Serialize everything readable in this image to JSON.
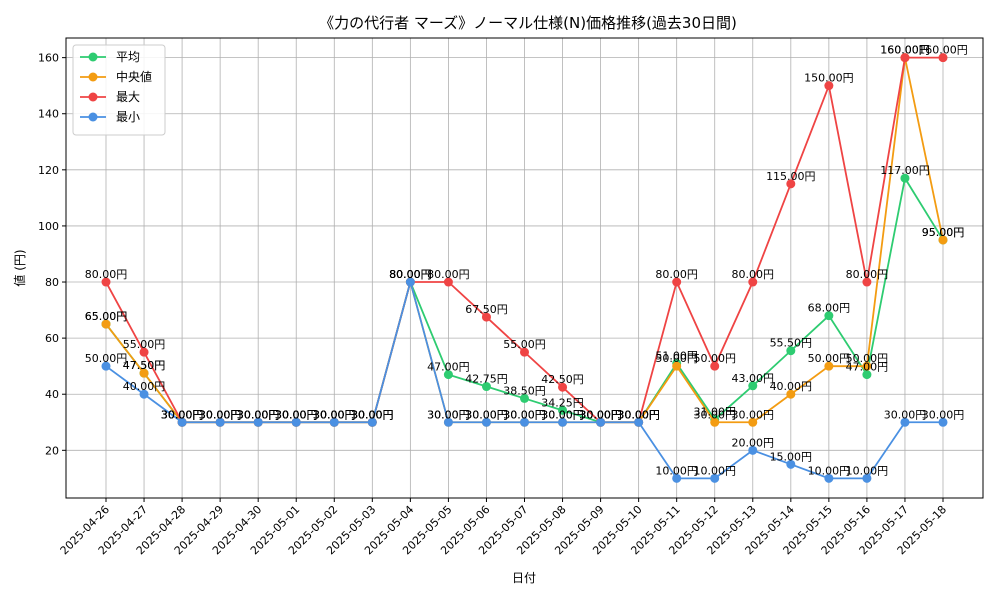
{
  "chart_data": {
    "type": "line",
    "title": "《力の代行者 マーズ》ノーマル仕様(N)価格推移(過去30日間)",
    "xlabel": "日付",
    "ylabel": "値 (円)",
    "ylim": [
      3,
      167
    ],
    "yticks": [
      20,
      40,
      60,
      80,
      100,
      120,
      140,
      160
    ],
    "grid": true,
    "legend_position": "top-left",
    "label_suffix": "円",
    "categories": [
      "2025-04-26",
      "2025-04-27",
      "2025-04-28",
      "2025-04-29",
      "2025-04-30",
      "2025-05-01",
      "2025-05-02",
      "2025-05-03",
      "2025-05-04",
      "2025-05-05",
      "2025-05-06",
      "2025-05-07",
      "2025-05-08",
      "2025-05-09",
      "2025-05-10",
      "2025-05-11",
      "2025-05-12",
      "2025-05-13",
      "2025-05-14",
      "2025-05-15",
      "2025-05-16",
      "2025-05-17",
      "2025-05-18"
    ],
    "series": [
      {
        "name": "平均",
        "color": "#2ecc71",
        "values": [
          65,
          47.5,
          30,
          30,
          30,
          30,
          30,
          30,
          80,
          47,
          42.75,
          38.5,
          34.25,
          30,
          30,
          51,
          31,
          43,
          55.5,
          68,
          47,
          117,
          95
        ]
      },
      {
        "name": "中央値",
        "color": "#f39c12",
        "values": [
          65,
          47.5,
          30,
          30,
          30,
          30,
          30,
          30,
          80,
          30,
          30,
          30,
          30,
          30,
          30,
          50,
          30,
          30,
          40,
          50,
          50,
          160,
          95
        ]
      },
      {
        "name": "最大",
        "color": "#ef4444",
        "values": [
          80,
          55,
          30,
          30,
          30,
          30,
          30,
          30,
          80,
          80,
          67.5,
          55,
          42.5,
          30,
          30,
          80,
          50,
          80,
          115,
          150,
          80,
          160,
          160
        ]
      },
      {
        "name": "最小",
        "color": "#4a90e2",
        "values": [
          50,
          40,
          30,
          30,
          30,
          30,
          30,
          30,
          80,
          30,
          30,
          30,
          30,
          30,
          30,
          10,
          10,
          20,
          15,
          10,
          10,
          30,
          30
        ]
      }
    ]
  }
}
